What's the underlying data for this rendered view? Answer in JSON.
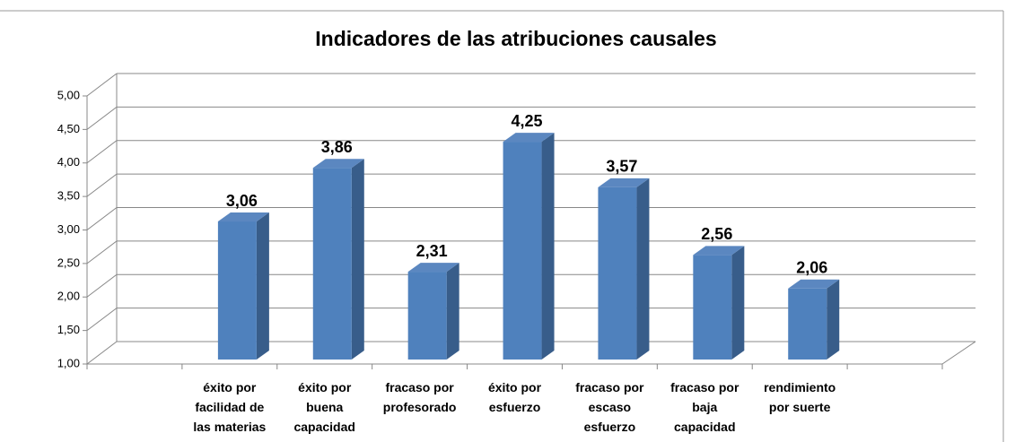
{
  "chart_data": {
    "type": "bar3d",
    "title": "Indicadores de las atribuciones causales",
    "categories": [
      null,
      "éxito por facilidad de las materias",
      "éxito por buena capacidad",
      "fracaso por profesorado",
      "éxito por esfuerzo",
      "fracaso por escaso esfuerzo",
      "fracaso por baja capacidad",
      "rendimiento por suerte",
      null
    ],
    "values": [
      null,
      3.06,
      3.86,
      2.31,
      4.25,
      3.57,
      2.56,
      2.06,
      null
    ],
    "value_labels": [
      null,
      "3,06",
      "3,86",
      "2,31",
      "4,25",
      "3,57",
      "2,56",
      "2,06",
      null
    ],
    "color": "#4f81bd",
    "ylim": [
      1,
      5
    ],
    "yticks": [
      {
        "value": 1,
        "label": "1,00"
      },
      {
        "value": 1.5,
        "label": "1,50"
      },
      {
        "value": 2,
        "label": "2,00"
      },
      {
        "value": 2.5,
        "label": "2,50"
      },
      {
        "value": 3,
        "label": "3,00"
      },
      {
        "value": 3.5,
        "label": "3,50"
      },
      {
        "value": 4,
        "label": "4,00"
      },
      {
        "value": 4.5,
        "label": "4,50"
      },
      {
        "value": 5,
        "label": "5,00"
      }
    ],
    "grid": true
  }
}
